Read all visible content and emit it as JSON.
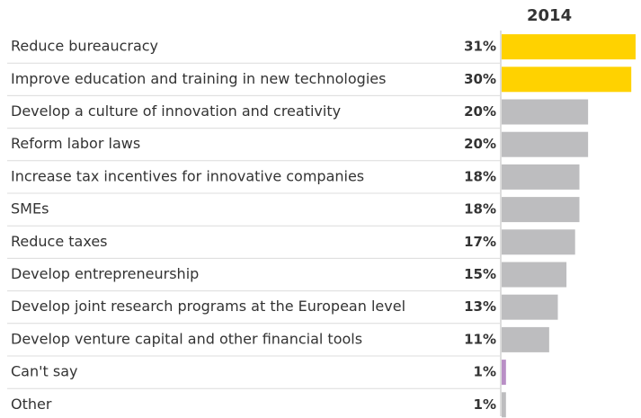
{
  "chart_data": {
    "type": "bar",
    "title": "2014",
    "categories": [
      "Reduce bureaucracy",
      "Improve education and training in new technologies",
      "Develop a culture of innovation and creativity",
      "Reform labor laws",
      "Increase tax incentives for innovative companies",
      "SMEs",
      "Reduce taxes",
      "Develop entrepreneurship",
      "Develop joint research programs at the European level",
      "Develop venture capital and other financial tools",
      "Can't say",
      "Other"
    ],
    "values": [
      31,
      30,
      20,
      20,
      18,
      18,
      17,
      15,
      13,
      11,
      1,
      1
    ],
    "value_labels": [
      "31%",
      "30%",
      "20%",
      "20%",
      "18%",
      "18%",
      "17%",
      "15%",
      "13%",
      "11%",
      "1%",
      "1%"
    ],
    "colors": [
      "#ffd200",
      "#ffd200",
      "#bdbdbf",
      "#bdbdbf",
      "#bdbdbf",
      "#bdbdbf",
      "#bdbdbf",
      "#bdbdbf",
      "#bdbdbf",
      "#bdbdbf",
      "#b98fc6",
      "#bdbdbf"
    ]
  }
}
